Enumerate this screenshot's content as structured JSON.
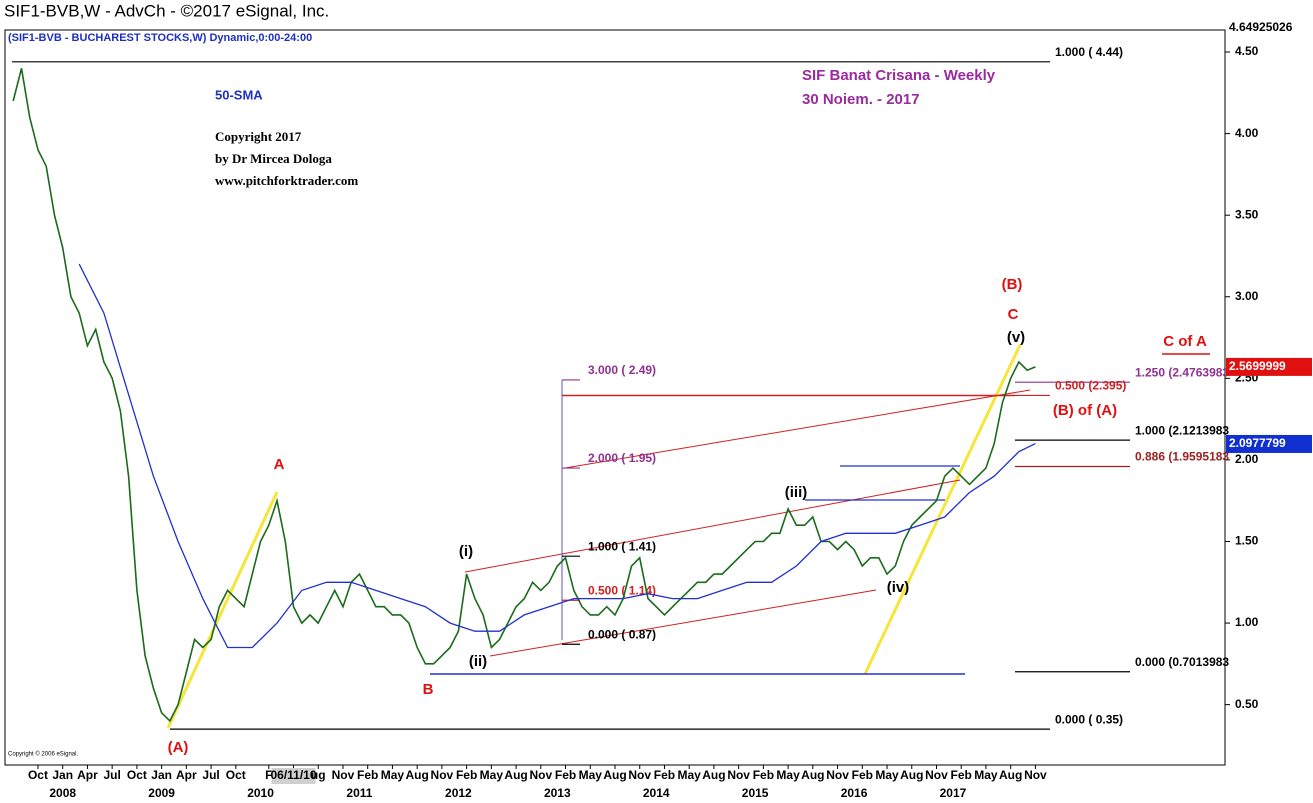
{
  "header": "SIF1-BVB,W - AdvCh - ©2017 eSignal, Inc.",
  "chart_data": {
    "type": "line",
    "title": "SIF Banat Crisana - Weekly",
    "date_note": "30 Noiem. -  2017",
    "subtitle": "(SIF1-BVB - BUCHAREST STOCKS,W) Dynamic,0:00-24:00",
    "notes": [
      "Copyright 2017",
      "by Dr Mircea Dologa",
      "www.pitchforktrader.com"
    ],
    "vendor_note": "Copyright © 2006 eSignal.",
    "xlim": [
      "2007-06",
      "2019-10"
    ],
    "ylim": [
      0.13,
      4.635
    ],
    "yticks": [
      {
        "value": 0.5,
        "label": "0.50"
      },
      {
        "value": 1,
        "label": "1.00"
      },
      {
        "value": 1.5,
        "label": "1.50"
      },
      {
        "value": 2,
        "label": "2.00"
      },
      {
        "value": 2.5,
        "label": "2.50"
      },
      {
        "value": 3,
        "label": "3.00"
      },
      {
        "value": 3.5,
        "label": "3.50"
      },
      {
        "value": 4,
        "label": "4.00"
      },
      {
        "value": 4.5,
        "label": "4.50"
      }
    ],
    "xticks": [
      {
        "value": "2007-10",
        "label": "Oct"
      },
      {
        "value": "2008-01",
        "label": "Jan"
      },
      {
        "value": "2008-04",
        "label": "Apr"
      },
      {
        "value": "2008-07",
        "label": "Jul"
      },
      {
        "value": "2008-10",
        "label": "Oct"
      },
      {
        "value": "2009-01",
        "label": "Jan"
      },
      {
        "value": "2009-04",
        "label": "Apr"
      },
      {
        "value": "2009-07",
        "label": "Jul"
      },
      {
        "value": "2009-10",
        "label": "Oct"
      },
      {
        "value": "2010-02",
        "label": "F"
      },
      {
        "value": "2010-05",
        "label": "06/11/10"
      },
      {
        "value": "2010-08",
        "label": "ug"
      },
      {
        "value": "2010-11",
        "label": "Nov"
      },
      {
        "value": "2011-02",
        "label": "Feb"
      },
      {
        "value": "2011-05",
        "label": "May"
      },
      {
        "value": "2011-08",
        "label": "Aug"
      },
      {
        "value": "2011-11",
        "label": "Nov"
      },
      {
        "value": "2012-02",
        "label": "Feb"
      },
      {
        "value": "2012-05",
        "label": "May"
      },
      {
        "value": "2012-08",
        "label": "Aug"
      },
      {
        "value": "2012-11",
        "label": "Nov"
      },
      {
        "value": "2013-02",
        "label": "Feb"
      },
      {
        "value": "2013-05",
        "label": "May"
      },
      {
        "value": "2013-08",
        "label": "Aug"
      },
      {
        "value": "2013-11",
        "label": "Nov"
      },
      {
        "value": "2014-02",
        "label": "Feb"
      },
      {
        "value": "2014-05",
        "label": "May"
      },
      {
        "value": "2014-08",
        "label": "Aug"
      },
      {
        "value": "2014-11",
        "label": "Nov"
      },
      {
        "value": "2015-02",
        "label": "Feb"
      },
      {
        "value": "2015-05",
        "label": "May"
      },
      {
        "value": "2015-08",
        "label": "Aug"
      },
      {
        "value": "2015-11",
        "label": "Nov"
      },
      {
        "value": "2016-02",
        "label": "Feb"
      },
      {
        "value": "2016-05",
        "label": "May"
      },
      {
        "value": "2016-08",
        "label": "Aug"
      },
      {
        "value": "2016-11",
        "label": "Nov"
      },
      {
        "value": "2017-02",
        "label": "Feb"
      },
      {
        "value": "2017-05",
        "label": "May"
      },
      {
        "value": "2017-08",
        "label": "Aug"
      },
      {
        "value": "2017-11",
        "label": "Nov"
      }
    ],
    "year_ticks": [
      {
        "value": "2008-01",
        "label": "2008"
      },
      {
        "value": "2009-01",
        "label": "2009"
      },
      {
        "value": "2010-01",
        "label": "2010"
      },
      {
        "value": "2011-01",
        "label": "2011"
      },
      {
        "value": "2012-01",
        "label": "2012"
      },
      {
        "value": "2013-01",
        "label": "2013"
      },
      {
        "value": "2014-01",
        "label": "2014"
      },
      {
        "value": "2015-01",
        "label": "2015"
      },
      {
        "value": "2016-01",
        "label": "2016"
      },
      {
        "value": "2017-01",
        "label": "2017"
      }
    ],
    "series": [
      {
        "name": "SIF1-BVB",
        "color": "#1a6b1a",
        "x": [
          "2007-07",
          "2007-08",
          "2007-09",
          "2007-10",
          "2007-11",
          "2007-12",
          "2008-01",
          "2008-02",
          "2008-03",
          "2008-04",
          "2008-05",
          "2008-06",
          "2008-07",
          "2008-08",
          "2008-09",
          "2008-10",
          "2008-11",
          "2008-12",
          "2009-01",
          "2009-02",
          "2009-03",
          "2009-04",
          "2009-05",
          "2009-06",
          "2009-07",
          "2009-08",
          "2009-09",
          "2009-10",
          "2009-11",
          "2009-12",
          "2010-01",
          "2010-02",
          "2010-03",
          "2010-04",
          "2010-05",
          "2010-06",
          "2010-07",
          "2010-08",
          "2010-09",
          "2010-10",
          "2010-11",
          "2010-12",
          "2011-01",
          "2011-02",
          "2011-03",
          "2011-04",
          "2011-05",
          "2011-06",
          "2011-07",
          "2011-08",
          "2011-09",
          "2011-10",
          "2011-11",
          "2011-12",
          "2012-01",
          "2012-02",
          "2012-03",
          "2012-04",
          "2012-05",
          "2012-06",
          "2012-07",
          "2012-08",
          "2012-09",
          "2012-10",
          "2012-11",
          "2012-12",
          "2013-01",
          "2013-02",
          "2013-03",
          "2013-04",
          "2013-05",
          "2013-06",
          "2013-07",
          "2013-08",
          "2013-09",
          "2013-10",
          "2013-11",
          "2013-12",
          "2014-01",
          "2014-02",
          "2014-03",
          "2014-04",
          "2014-05",
          "2014-06",
          "2014-07",
          "2014-08",
          "2014-09",
          "2014-10",
          "2014-11",
          "2014-12",
          "2015-01",
          "2015-02",
          "2015-03",
          "2015-04",
          "2015-05",
          "2015-06",
          "2015-07",
          "2015-08",
          "2015-09",
          "2015-10",
          "2015-11",
          "2015-12",
          "2016-01",
          "2016-02",
          "2016-03",
          "2016-04",
          "2016-05",
          "2016-06",
          "2016-07",
          "2016-08",
          "2016-09",
          "2016-10",
          "2016-11",
          "2016-12",
          "2017-01",
          "2017-02",
          "2017-03",
          "2017-04",
          "2017-05",
          "2017-06",
          "2017-07",
          "2017-08",
          "2017-09",
          "2017-10",
          "2017-11"
        ],
        "values": [
          4.2,
          4.4,
          4.1,
          3.9,
          3.8,
          3.5,
          3.3,
          3.0,
          2.9,
          2.7,
          2.8,
          2.6,
          2.5,
          2.3,
          1.9,
          1.2,
          0.8,
          0.6,
          0.45,
          0.4,
          0.5,
          0.7,
          0.9,
          0.85,
          0.9,
          1.1,
          1.2,
          1.15,
          1.1,
          1.3,
          1.5,
          1.6,
          1.75,
          1.5,
          1.1,
          1.0,
          1.05,
          1.0,
          1.1,
          1.2,
          1.1,
          1.25,
          1.3,
          1.2,
          1.1,
          1.1,
          1.05,
          1.05,
          1.0,
          0.85,
          0.75,
          0.75,
          0.8,
          0.85,
          0.95,
          1.3,
          1.15,
          1.05,
          0.85,
          0.9,
          1.0,
          1.1,
          1.15,
          1.25,
          1.2,
          1.25,
          1.35,
          1.4,
          1.2,
          1.1,
          1.05,
          1.05,
          1.1,
          1.05,
          1.15,
          1.35,
          1.4,
          1.15,
          1.1,
          1.05,
          1.1,
          1.15,
          1.2,
          1.25,
          1.25,
          1.3,
          1.3,
          1.35,
          1.4,
          1.45,
          1.5,
          1.5,
          1.55,
          1.55,
          1.7,
          1.6,
          1.6,
          1.65,
          1.5,
          1.5,
          1.45,
          1.5,
          1.45,
          1.35,
          1.4,
          1.4,
          1.3,
          1.35,
          1.5,
          1.6,
          1.65,
          1.7,
          1.75,
          1.9,
          1.95,
          1.9,
          1.85,
          1.9,
          1.95,
          2.1,
          2.35,
          2.5,
          2.6,
          2.55,
          2.57
        ]
      },
      {
        "name": "50-SMA",
        "color": "#2030d0",
        "x": [
          "2008-03",
          "2008-06",
          "2008-09",
          "2008-12",
          "2009-03",
          "2009-06",
          "2009-09",
          "2009-12",
          "2010-03",
          "2010-06",
          "2010-09",
          "2010-12",
          "2011-03",
          "2011-06",
          "2011-09",
          "2011-12",
          "2012-03",
          "2012-06",
          "2012-09",
          "2012-12",
          "2013-03",
          "2013-06",
          "2013-09",
          "2013-12",
          "2014-03",
          "2014-06",
          "2014-09",
          "2014-12",
          "2015-03",
          "2015-06",
          "2015-09",
          "2015-12",
          "2016-03",
          "2016-06",
          "2016-09",
          "2016-12",
          "2017-03",
          "2017-06",
          "2017-09",
          "2017-11"
        ],
        "values": [
          3.2,
          2.9,
          2.4,
          1.9,
          1.5,
          1.15,
          0.85,
          0.85,
          1.0,
          1.2,
          1.25,
          1.25,
          1.2,
          1.15,
          1.1,
          1.0,
          0.95,
          0.95,
          1.05,
          1.1,
          1.15,
          1.15,
          1.15,
          1.18,
          1.15,
          1.15,
          1.2,
          1.25,
          1.25,
          1.35,
          1.5,
          1.55,
          1.55,
          1.55,
          1.6,
          1.65,
          1.8,
          1.9,
          2.05,
          2.1
        ]
      }
    ],
    "fib_levels": [
      {
        "label": "1.000 ( 4.44)",
        "value": 4.44,
        "color": "#000000"
      },
      {
        "label": "0.000 ( 0.35)",
        "value": 0.35,
        "color": "#000000"
      },
      {
        "label": "1.250 (2.4763983",
        "value": 2.4763983,
        "color": "#903090"
      },
      {
        "label": "1.000 (2.1213983",
        "value": 2.1213983,
        "color": "#000000"
      },
      {
        "label": "0.886 (1.9595183",
        "value": 1.9595183,
        "color": "#a02020"
      },
      {
        "label": "0.000 (0.7013983",
        "value": 0.7013983,
        "color": "#000000"
      },
      {
        "label": "3.000 ( 2.49)",
        "value": 2.49,
        "color": "#903090"
      },
      {
        "label": "2.000 ( 1.95)",
        "value": 1.95,
        "color": "#903090"
      },
      {
        "label": "1.000 ( 1.41)",
        "value": 1.41,
        "color": "#000000"
      },
      {
        "label": "0.500 ( 1.14)",
        "value": 1.14,
        "color": "#d02020"
      },
      {
        "label": "0.000 ( 0.87)",
        "value": 0.87,
        "color": "#000000"
      },
      {
        "label": "0.500 (2.395)",
        "value": 2.395,
        "color": "#d02020"
      }
    ],
    "annotations": [
      {
        "text": "(A)",
        "color": "#e01010"
      },
      {
        "text": "A",
        "color": "#e01010"
      },
      {
        "text": "B",
        "color": "#e01010"
      },
      {
        "text": "(i)",
        "color": "#000000"
      },
      {
        "text": "(ii)",
        "color": "#000000"
      },
      {
        "text": "(iii)",
        "color": "#000000"
      },
      {
        "text": "(iv)",
        "color": "#000000"
      },
      {
        "text": "(v)",
        "color": "#000000"
      },
      {
        "text": "C",
        "color": "#e01010"
      },
      {
        "text": "(B)",
        "color": "#e01010"
      },
      {
        "text": "C of A",
        "color": "#e01010"
      },
      {
        "text": "(B) of (A)",
        "color": "#e01010"
      }
    ],
    "price_markers": [
      {
        "value": 4.64925026,
        "color": "#ffffff",
        "text_color": "#000000"
      },
      {
        "value": 2.5699999,
        "color": "#e01010",
        "text_color": "#ffffff"
      },
      {
        "value": 2.0977799,
        "color": "#1030d0",
        "text_color": "#ffffff"
      }
    ]
  }
}
